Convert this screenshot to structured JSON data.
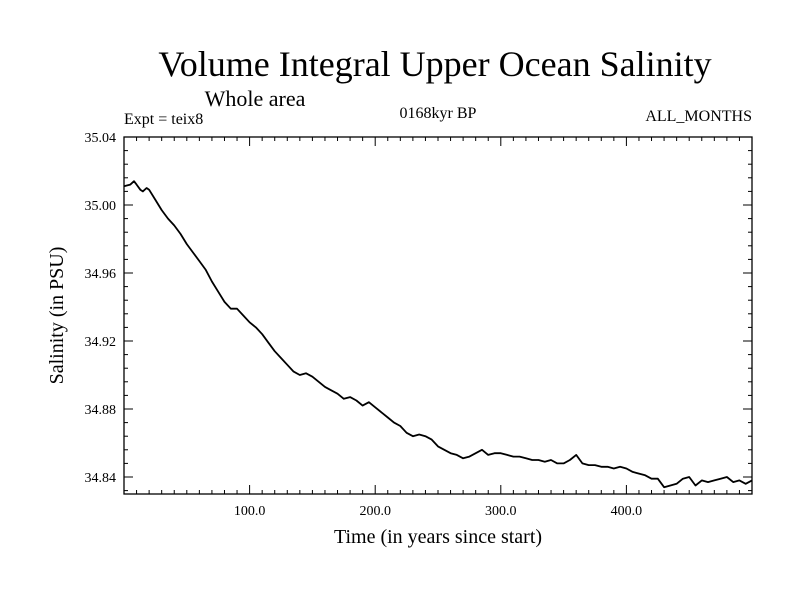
{
  "header": {
    "title": "Volume Integral Upper Ocean Salinity",
    "subtitle": "Whole area",
    "expt": "Expt = teix8",
    "period": "0168kyr BP",
    "months": "ALL_MONTHS"
  },
  "chart_data": {
    "type": "line",
    "title": "Volume Integral Upper Ocean Salinity",
    "xlabel": "Time (in years since start)",
    "ylabel": "Salinity (in PSU)",
    "xlim": [
      0,
      500
    ],
    "ylim": [
      34.83,
      35.04
    ],
    "x_ticks": [
      100,
      200,
      300,
      400
    ],
    "x_tick_labels": [
      "100.0",
      "200.0",
      "300.0",
      "400.0"
    ],
    "y_ticks": [
      34.84,
      34.88,
      34.92,
      34.96,
      35.0,
      35.04
    ],
    "y_tick_labels": [
      "34.84",
      "34.88",
      "34.92",
      "34.96",
      "35.00",
      "35.04"
    ],
    "grid": false,
    "series": [
      {
        "color": "#000000",
        "x": [
          0,
          5,
          8,
          10,
          13,
          15,
          18,
          20,
          25,
          30,
          35,
          40,
          45,
          50,
          55,
          60,
          65,
          70,
          75,
          80,
          85,
          90,
          95,
          100,
          105,
          110,
          115,
          120,
          125,
          130,
          135,
          140,
          145,
          150,
          155,
          160,
          165,
          170,
          175,
          180,
          185,
          190,
          195,
          200,
          205,
          210,
          215,
          220,
          225,
          230,
          235,
          240,
          245,
          250,
          255,
          260,
          265,
          270,
          275,
          280,
          285,
          290,
          295,
          300,
          305,
          310,
          315,
          320,
          325,
          330,
          335,
          340,
          345,
          350,
          355,
          360,
          365,
          370,
          375,
          380,
          385,
          390,
          395,
          400,
          405,
          410,
          415,
          420,
          425,
          430,
          435,
          440,
          445,
          450,
          455,
          460,
          465,
          470,
          475,
          480,
          485,
          490,
          495,
          500
        ],
        "y": [
          35.011,
          35.012,
          35.014,
          35.012,
          35.009,
          35.008,
          35.01,
          35.009,
          35.003,
          34.997,
          34.992,
          34.988,
          34.983,
          34.977,
          34.972,
          34.967,
          34.962,
          34.955,
          34.949,
          34.943,
          34.939,
          34.939,
          34.935,
          34.931,
          34.928,
          34.924,
          34.919,
          34.914,
          34.91,
          34.906,
          34.902,
          34.9,
          34.901,
          34.899,
          34.896,
          34.893,
          34.891,
          34.889,
          34.886,
          34.887,
          34.885,
          34.882,
          34.884,
          34.881,
          34.878,
          34.875,
          34.872,
          34.87,
          34.866,
          34.864,
          34.865,
          34.864,
          34.862,
          34.858,
          34.856,
          34.854,
          34.853,
          34.851,
          34.852,
          34.854,
          34.856,
          34.853,
          34.854,
          34.854,
          34.853,
          34.852,
          34.852,
          34.851,
          34.85,
          34.85,
          34.849,
          34.85,
          34.848,
          34.848,
          34.85,
          34.853,
          34.848,
          34.847,
          34.847,
          34.846,
          34.846,
          34.845,
          34.846,
          34.845,
          34.843,
          34.842,
          34.841,
          34.839,
          34.839,
          34.834,
          34.835,
          34.836,
          34.839,
          34.84,
          34.835,
          34.838,
          34.837,
          34.838,
          34.839,
          34.84,
          34.837,
          34.838,
          34.836,
          34.838
        ]
      }
    ]
  }
}
